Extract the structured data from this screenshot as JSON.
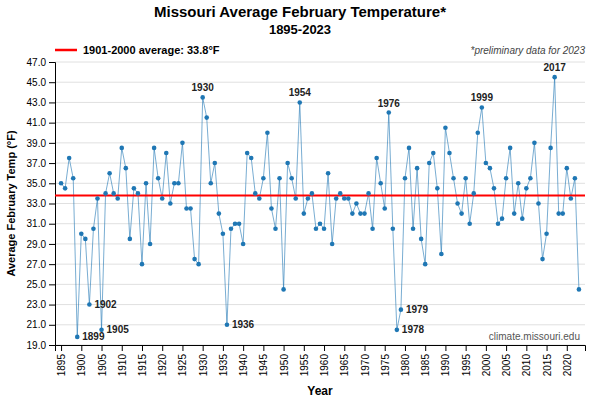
{
  "chart_data": {
    "type": "line",
    "title": "Missouri Average February Temperature*",
    "subtitle": "1895-2023",
    "xlabel": "Year",
    "ylabel": "Average February Temp (°F)",
    "x": [
      1895,
      1896,
      1897,
      1898,
      1899,
      1900,
      1901,
      1902,
      1903,
      1904,
      1905,
      1906,
      1907,
      1908,
      1909,
      1910,
      1911,
      1912,
      1913,
      1914,
      1915,
      1916,
      1917,
      1918,
      1919,
      1920,
      1921,
      1922,
      1923,
      1924,
      1925,
      1926,
      1927,
      1928,
      1929,
      1930,
      1931,
      1932,
      1933,
      1934,
      1935,
      1936,
      1937,
      1938,
      1939,
      1940,
      1941,
      1942,
      1943,
      1944,
      1945,
      1946,
      1947,
      1948,
      1949,
      1950,
      1951,
      1952,
      1953,
      1954,
      1955,
      1956,
      1957,
      1958,
      1959,
      1960,
      1961,
      1962,
      1963,
      1964,
      1965,
      1966,
      1967,
      1968,
      1969,
      1970,
      1971,
      1972,
      1973,
      1974,
      1975,
      1976,
      1977,
      1978,
      1979,
      1980,
      1981,
      1982,
      1983,
      1984,
      1985,
      1986,
      1987,
      1988,
      1989,
      1990,
      1991,
      1992,
      1993,
      1994,
      1995,
      1996,
      1997,
      1998,
      1999,
      2000,
      2001,
      2002,
      2003,
      2004,
      2005,
      2006,
      2007,
      2008,
      2009,
      2010,
      2011,
      2012,
      2013,
      2014,
      2015,
      2016,
      2017,
      2018,
      2019,
      2020,
      2021,
      2022,
      2023
    ],
    "values": [
      35.0,
      34.5,
      37.5,
      35.5,
      19.8,
      30.0,
      29.5,
      23.0,
      30.5,
      33.5,
      20.5,
      34.0,
      36.0,
      34.0,
      33.5,
      38.5,
      36.5,
      29.5,
      34.5,
      34.0,
      27.0,
      35.0,
      29.0,
      38.5,
      35.5,
      33.5,
      38.0,
      33.0,
      35.0,
      35.0,
      39.0,
      32.5,
      32.5,
      27.5,
      27.0,
      43.5,
      41.5,
      35.0,
      37.0,
      32.0,
      30.0,
      21.0,
      30.5,
      31.0,
      31.0,
      29.0,
      38.0,
      37.5,
      34.0,
      33.5,
      35.5,
      40.0,
      32.5,
      30.5,
      35.5,
      24.5,
      37.0,
      35.5,
      33.5,
      43.0,
      32.0,
      33.5,
      34.0,
      30.5,
      31.0,
      30.5,
      36.0,
      29.0,
      33.5,
      34.0,
      33.5,
      33.5,
      32.0,
      33.0,
      32.0,
      32.0,
      34.0,
      30.5,
      37.5,
      35.0,
      32.5,
      42.0,
      30.5,
      20.5,
      22.5,
      35.5,
      38.5,
      30.5,
      36.5,
      29.5,
      27.0,
      37.0,
      38.0,
      34.5,
      28.0,
      40.5,
      38.0,
      35.5,
      33.0,
      32.0,
      35.5,
      31.0,
      34.0,
      40.0,
      42.5,
      37.0,
      36.5,
      34.5,
      31.0,
      31.5,
      35.5,
      38.5,
      32.0,
      35.0,
      31.5,
      34.5,
      35.5,
      39.0,
      33.0,
      27.5,
      30.0,
      38.5,
      45.5,
      32.0,
      32.0,
      36.5,
      33.5,
      35.5,
      24.5
    ],
    "marker": "circle",
    "line_style": "solid",
    "xlim": [
      1893.5,
      2024.5
    ],
    "xticks": [
      1895,
      1900,
      1905,
      1910,
      1915,
      1920,
      1925,
      1930,
      1935,
      1940,
      1945,
      1950,
      1955,
      1960,
      1965,
      1970,
      1975,
      1980,
      1985,
      1990,
      1995,
      2000,
      2005,
      2010,
      2015,
      2020
    ],
    "ylim": [
      19.0,
      47.0
    ],
    "yticks": [
      {
        "value": 19,
        "label": "19.0"
      },
      {
        "value": 21,
        "label": "21.0"
      },
      {
        "value": 23,
        "label": "23.0"
      },
      {
        "value": 25,
        "label": "25.0"
      },
      {
        "value": 27,
        "label": "27.0"
      },
      {
        "value": 29,
        "label": "29.0"
      },
      {
        "value": 31,
        "label": "31.0"
      },
      {
        "value": 33,
        "label": "33.0"
      },
      {
        "value": 35,
        "label": "35.0"
      },
      {
        "value": 37,
        "label": "37.0"
      },
      {
        "value": 39,
        "label": "39.0"
      },
      {
        "value": 41,
        "label": "41.0"
      },
      {
        "value": 43,
        "label": "43.0"
      },
      {
        "value": 45,
        "label": "45.0"
      },
      {
        "value": 47,
        "label": "47.0"
      }
    ],
    "grid": "y",
    "annotations": [
      {
        "text": "1901-2000 average: 33.8°F",
        "y": 33.8,
        "color": "#ff0000"
      },
      {
        "text": "*preliminary data for 2023"
      },
      {
        "text": "climate.missouri.edu"
      },
      {
        "text": "1899",
        "x": 1899,
        "y": 19.8
      },
      {
        "text": "1902",
        "x": 1902,
        "y": 23.0
      },
      {
        "text": "1905",
        "x": 1905,
        "y": 20.5
      },
      {
        "text": "1930",
        "x": 1930,
        "y": 43.5
      },
      {
        "text": "1936",
        "x": 1936,
        "y": 21.0
      },
      {
        "text": "1954",
        "x": 1954,
        "y": 43.0
      },
      {
        "text": "1976",
        "x": 1976,
        "y": 42.0
      },
      {
        "text": "1978",
        "x": 1978,
        "y": 20.5
      },
      {
        "text": "1979",
        "x": 1979,
        "y": 22.5
      },
      {
        "text": "1999",
        "x": 1999,
        "y": 42.5
      },
      {
        "text": "2017",
        "x": 2017,
        "y": 45.5
      }
    ]
  }
}
